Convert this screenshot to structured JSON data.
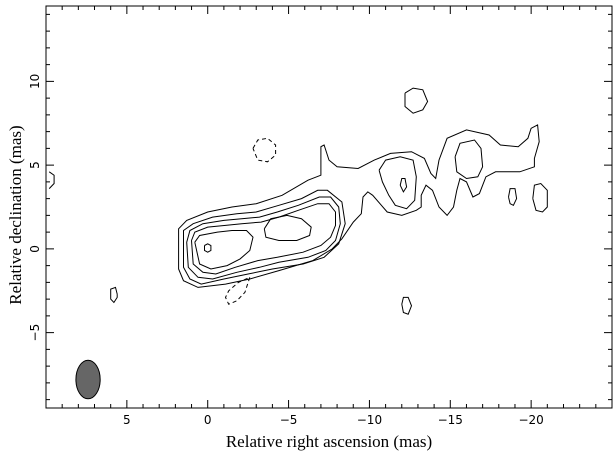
{
  "chart_data": {
    "type": "contour",
    "title": "",
    "xlabel": "Relative right ascension (mas)",
    "ylabel": "Relative declination (mas)",
    "xlim": [
      10,
      -25
    ],
    "ylim": [
      -9.5,
      14.5
    ],
    "x_direction": "decreasing to the right",
    "xticks": [
      5,
      0,
      -5,
      -10,
      -15,
      -20
    ],
    "xtick_labels": [
      "5",
      "0",
      "−5",
      "−10",
      "−15",
      "−20"
    ],
    "yticks": [
      -5,
      0,
      5,
      10
    ],
    "ytick_labels": [
      "−5",
      "0",
      "5",
      "10"
    ],
    "grid": false,
    "beam": {
      "x": 7.4,
      "y": -7.8,
      "major": 2.3,
      "minor": 1.5,
      "pa_deg": 0,
      "color": "#666666"
    },
    "contours": [
      {
        "id": "core-outermost",
        "sign": "positive",
        "points": [
          [
            1.8,
            0.5
          ],
          [
            1.8,
            1.2
          ],
          [
            1.3,
            1.7
          ],
          [
            0,
            2.2
          ],
          [
            -1.5,
            2.5
          ],
          [
            -3,
            2.7
          ],
          [
            -4.6,
            3.2
          ],
          [
            -6.2,
            4.1
          ],
          [
            -7,
            4.4
          ],
          [
            -7,
            6.1
          ],
          [
            -7.2,
            6.2
          ],
          [
            -7.5,
            5.3
          ],
          [
            -8,
            4.9
          ],
          [
            -9.3,
            4.8
          ],
          [
            -10.3,
            5.3
          ],
          [
            -11.3,
            5.7
          ],
          [
            -12.6,
            5.8
          ],
          [
            -13.4,
            5.4
          ],
          [
            -13.8,
            4.5
          ],
          [
            -14.1,
            4.2
          ],
          [
            -14.3,
            5.3
          ],
          [
            -14.8,
            6.6
          ],
          [
            -16,
            7.1
          ],
          [
            -17.4,
            6.8
          ],
          [
            -18.1,
            6.2
          ],
          [
            -19.2,
            6.1
          ],
          [
            -19.8,
            6.6
          ],
          [
            -20,
            7.2
          ],
          [
            -20.4,
            7.4
          ],
          [
            -20.5,
            6.4
          ],
          [
            -20.2,
            5.4
          ],
          [
            -20.2,
            4.9
          ],
          [
            -19.3,
            4.6
          ],
          [
            -17.8,
            4.6
          ],
          [
            -17.2,
            4.3
          ],
          [
            -16.8,
            3.3
          ],
          [
            -16.4,
            3.1
          ],
          [
            -16,
            4
          ],
          [
            -15.6,
            4.2
          ],
          [
            -15.4,
            3.5
          ],
          [
            -15.2,
            2.5
          ],
          [
            -14.8,
            2
          ],
          [
            -14.3,
            2.5
          ],
          [
            -13.9,
            3.5
          ],
          [
            -13.5,
            3.8
          ],
          [
            -13.2,
            3.2
          ],
          [
            -13.2,
            2.5
          ],
          [
            -12.9,
            2.3
          ],
          [
            -12,
            2
          ],
          [
            -11.1,
            2.2
          ],
          [
            -10.2,
            3.2
          ],
          [
            -9.9,
            3.4
          ],
          [
            -9.6,
            3.1
          ],
          [
            -9.5,
            2.1
          ],
          [
            -9,
            1.6
          ],
          [
            -8.3,
            0.6
          ],
          [
            -7.7,
            0
          ],
          [
            -6.5,
            -0.7
          ],
          [
            -4.4,
            -1.3
          ],
          [
            -2.6,
            -1.8
          ],
          [
            -1.1,
            -2.1
          ],
          [
            0.6,
            -2.3
          ],
          [
            1.5,
            -1.9
          ],
          [
            1.8,
            -1.2
          ],
          [
            1.8,
            0.5
          ]
        ]
      },
      {
        "id": "core-level-2",
        "sign": "positive",
        "points": [
          [
            1.5,
            0.5
          ],
          [
            1.5,
            1.1
          ],
          [
            0.9,
            1.5
          ],
          [
            -0.3,
            1.9
          ],
          [
            -1.8,
            2.1
          ],
          [
            -3,
            2.2
          ],
          [
            -4.4,
            2.6
          ],
          [
            -5.8,
            3
          ],
          [
            -6.8,
            3.5
          ],
          [
            -7.4,
            3.5
          ],
          [
            -8.3,
            2.8
          ],
          [
            -8.5,
            1.5
          ],
          [
            -8.1,
            0.3
          ],
          [
            -7.2,
            -0.5
          ],
          [
            -5.9,
            -0.9
          ],
          [
            -4,
            -1.2
          ],
          [
            -2.5,
            -1.5
          ],
          [
            -1,
            -1.8
          ],
          [
            0.4,
            -2.1
          ],
          [
            1.1,
            -1.8
          ],
          [
            1.5,
            -1.1
          ],
          [
            1.5,
            0.5
          ]
        ]
      },
      {
        "id": "core-level-3",
        "sign": "positive",
        "points": [
          [
            1.3,
            0.4
          ],
          [
            1.1,
            1.1
          ],
          [
            0.3,
            1.5
          ],
          [
            -1,
            1.7
          ],
          [
            -2.1,
            1.8
          ],
          [
            -3.2,
            1.9
          ],
          [
            -4.3,
            2.2
          ],
          [
            -5.6,
            2.6
          ],
          [
            -6.9,
            3.1
          ],
          [
            -7.6,
            3.1
          ],
          [
            -8.1,
            2.5
          ],
          [
            -8.2,
            1.5
          ],
          [
            -7.9,
            0.5
          ],
          [
            -7.3,
            -0.1
          ],
          [
            -6.2,
            -0.5
          ],
          [
            -4.4,
            -0.8
          ],
          [
            -3.2,
            -1.1
          ],
          [
            -1.8,
            -1.4
          ],
          [
            -0.3,
            -1.8
          ],
          [
            0.6,
            -1.7
          ],
          [
            1.2,
            -1.1
          ],
          [
            1.3,
            0.4
          ]
        ]
      },
      {
        "id": "core-level-4",
        "sign": "positive",
        "points": [
          [
            1,
            0.5
          ],
          [
            0.8,
            1
          ],
          [
            0,
            1.3
          ],
          [
            -1.1,
            1.4
          ],
          [
            -2.1,
            1.5
          ],
          [
            -3.3,
            1.6
          ],
          [
            -4.4,
            1.9
          ],
          [
            -5.6,
            2.3
          ],
          [
            -6.8,
            2.7
          ],
          [
            -7.5,
            2.7
          ],
          [
            -7.9,
            2.2
          ],
          [
            -7.9,
            1.4
          ],
          [
            -7.6,
            0.7
          ],
          [
            -7,
            0.2
          ],
          [
            -5.9,
            -0.2
          ],
          [
            -4.3,
            -0.5
          ],
          [
            -3.1,
            -0.7
          ],
          [
            -1.7,
            -1.1
          ],
          [
            -0.5,
            -1.5
          ],
          [
            0.3,
            -1.4
          ],
          [
            0.9,
            -0.9
          ],
          [
            1,
            0.5
          ]
        ]
      },
      {
        "id": "core-level-5",
        "sign": "positive",
        "points": [
          [
            0.8,
            0.4
          ],
          [
            0.5,
            0.8
          ],
          [
            -0.6,
            1
          ],
          [
            -1.5,
            1.1
          ],
          [
            -2.4,
            1.1
          ],
          [
            -2.8,
            0.7
          ],
          [
            -2.6,
            -0.1
          ],
          [
            -2,
            -0.6
          ],
          [
            -1.2,
            -1
          ],
          [
            -0.2,
            -1.2
          ],
          [
            0.5,
            -0.9
          ],
          [
            0.8,
            0.4
          ]
        ]
      },
      {
        "id": "core-peak",
        "sign": "positive",
        "points": [
          [
            0.2,
            0.2
          ],
          [
            0,
            0.3
          ],
          [
            -0.2,
            0.2
          ],
          [
            -0.2,
            -0.1
          ],
          [
            0,
            -0.2
          ],
          [
            0.2,
            -0.1
          ],
          [
            0.2,
            0.2
          ]
        ]
      },
      {
        "id": "jet-knot-inner",
        "sign": "positive",
        "points": [
          [
            -3.5,
            1.2
          ],
          [
            -3.9,
            1.8
          ],
          [
            -4.9,
            2
          ],
          [
            -5.8,
            1.8
          ],
          [
            -6.4,
            1.3
          ],
          [
            -6.3,
            0.8
          ],
          [
            -5.5,
            0.5
          ],
          [
            -4.4,
            0.5
          ],
          [
            -3.6,
            0.7
          ],
          [
            -3.5,
            1.2
          ]
        ]
      },
      {
        "id": "knot-12mas-outer",
        "sign": "positive",
        "points": [
          [
            -10.6,
            4.7
          ],
          [
            -11,
            5.3
          ],
          [
            -11.9,
            5.5
          ],
          [
            -12.7,
            5.3
          ],
          [
            -12.9,
            4.3
          ],
          [
            -12.8,
            2.9
          ],
          [
            -12.3,
            2.4
          ],
          [
            -11.6,
            2.6
          ],
          [
            -11.2,
            3.2
          ],
          [
            -10.8,
            4
          ],
          [
            -10.6,
            4.7
          ]
        ]
      },
      {
        "id": "knot-12mas-inner",
        "sign": "positive",
        "points": [
          [
            -11.9,
            3.8
          ],
          [
            -12,
            4.2
          ],
          [
            -12.2,
            4.2
          ],
          [
            -12.3,
            3.7
          ],
          [
            -12.1,
            3.4
          ],
          [
            -11.9,
            3.8
          ]
        ]
      },
      {
        "id": "knot-16mas",
        "sign": "positive",
        "points": [
          [
            -15.3,
            5.5
          ],
          [
            -15.6,
            6.3
          ],
          [
            -16.5,
            6.5
          ],
          [
            -16.9,
            6
          ],
          [
            -17,
            4.9
          ],
          [
            -16.7,
            4.3
          ],
          [
            -16,
            4.2
          ],
          [
            -15.4,
            4.6
          ],
          [
            -15.3,
            5.5
          ]
        ]
      },
      {
        "id": "blob-12.8-8.8",
        "sign": "positive",
        "points": [
          [
            -12.2,
            9.3
          ],
          [
            -12.7,
            9.6
          ],
          [
            -13.3,
            9.5
          ],
          [
            -13.6,
            8.8
          ],
          [
            -13.3,
            8.3
          ],
          [
            -12.7,
            8.1
          ],
          [
            -12.2,
            8.5
          ],
          [
            -12.2,
            9.3
          ]
        ]
      },
      {
        "id": "blob-18.8-3.0",
        "sign": "positive",
        "points": [
          [
            -18.6,
            3.1
          ],
          [
            -18.7,
            3.6
          ],
          [
            -19,
            3.6
          ],
          [
            -19.1,
            3
          ],
          [
            -18.9,
            2.6
          ],
          [
            -18.7,
            2.7
          ],
          [
            -18.6,
            3.1
          ]
        ]
      },
      {
        "id": "blob-20.6-3.1",
        "sign": "positive",
        "points": [
          [
            -20.1,
            3
          ],
          [
            -20.2,
            3.8
          ],
          [
            -20.6,
            3.9
          ],
          [
            -21,
            3.5
          ],
          [
            -21,
            2.5
          ],
          [
            -20.7,
            2.2
          ],
          [
            -20.3,
            2.3
          ],
          [
            -20.1,
            3
          ]
        ]
      },
      {
        "id": "blob-12.3-3.4",
        "sign": "positive",
        "points": [
          [
            -12,
            -3.3
          ],
          [
            -12.1,
            -2.9
          ],
          [
            -12.4,
            -2.9
          ],
          [
            -12.6,
            -3.4
          ],
          [
            -12.4,
            -3.9
          ],
          [
            -12.1,
            -3.8
          ],
          [
            -12,
            -3.3
          ]
        ]
      },
      {
        "id": "blob-5.9-2.8",
        "sign": "positive",
        "points": [
          [
            5.6,
            -2.7
          ],
          [
            5.7,
            -2.3
          ],
          [
            6,
            -2.4
          ],
          [
            6,
            -3
          ],
          [
            5.8,
            -3.2
          ],
          [
            5.6,
            -2.9
          ],
          [
            5.6,
            -2.7
          ]
        ]
      },
      {
        "id": "edge-blob-left",
        "sign": "positive",
        "points": [
          [
            9.8,
            4.6
          ],
          [
            9.5,
            4.4
          ],
          [
            9.5,
            3.9
          ],
          [
            9.8,
            3.6
          ]
        ]
      },
      {
        "id": "neg-3.5-6",
        "sign": "negative",
        "points": [
          [
            -2.8,
            6
          ],
          [
            -3.1,
            6.5
          ],
          [
            -3.7,
            6.6
          ],
          [
            -4.2,
            6.2
          ],
          [
            -4.2,
            5.6
          ],
          [
            -3.7,
            5.2
          ],
          [
            -3.1,
            5.3
          ],
          [
            -2.8,
            6
          ]
        ]
      },
      {
        "id": "neg-2-2.5",
        "sign": "negative",
        "points": [
          [
            -2.6,
            -1.7
          ],
          [
            -2.3,
            -2.6
          ],
          [
            -1.8,
            -3.1
          ],
          [
            -1.3,
            -3.3
          ],
          [
            -1.1,
            -2.9
          ],
          [
            -1.3,
            -2.5
          ],
          [
            -1.9,
            -2
          ],
          [
            -2.6,
            -1.7
          ]
        ]
      }
    ]
  }
}
